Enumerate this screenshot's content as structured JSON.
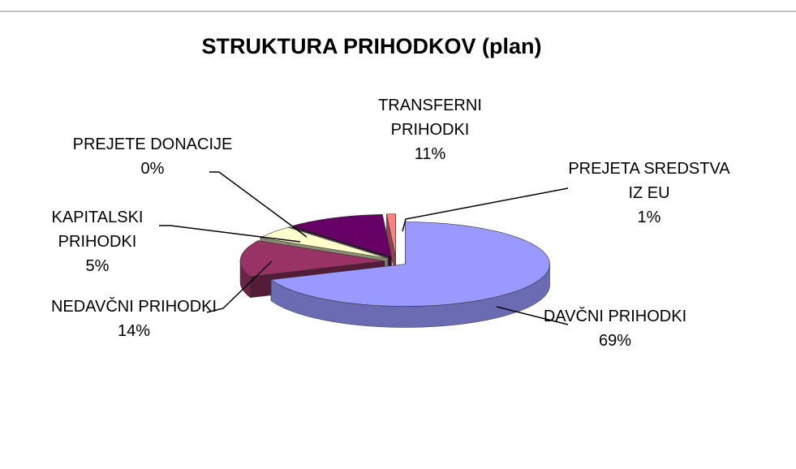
{
  "chart_data": {
    "type": "pie3d",
    "title": "STRUKTURA PRIHODKOV (plan)",
    "categories": [
      "DAVČNI PRIHODKI",
      "NEDAVČNI PRIHODKI",
      "KAPITALSKI PRIHODKI",
      "PREJETE DONACIJE",
      "TRANSFERNI PRIHODKI",
      "PREJETA SREDSTVA IZ EU"
    ],
    "values": [
      69,
      14,
      5,
      0,
      11,
      1
    ],
    "value_labels": [
      "69%",
      "14%",
      "5%",
      "0%",
      "11%",
      "1%"
    ],
    "colors": [
      "#9999ff",
      "#993366",
      "#ffffcc",
      "#ccffcc",
      "#660066",
      "#ff8080"
    ]
  }
}
